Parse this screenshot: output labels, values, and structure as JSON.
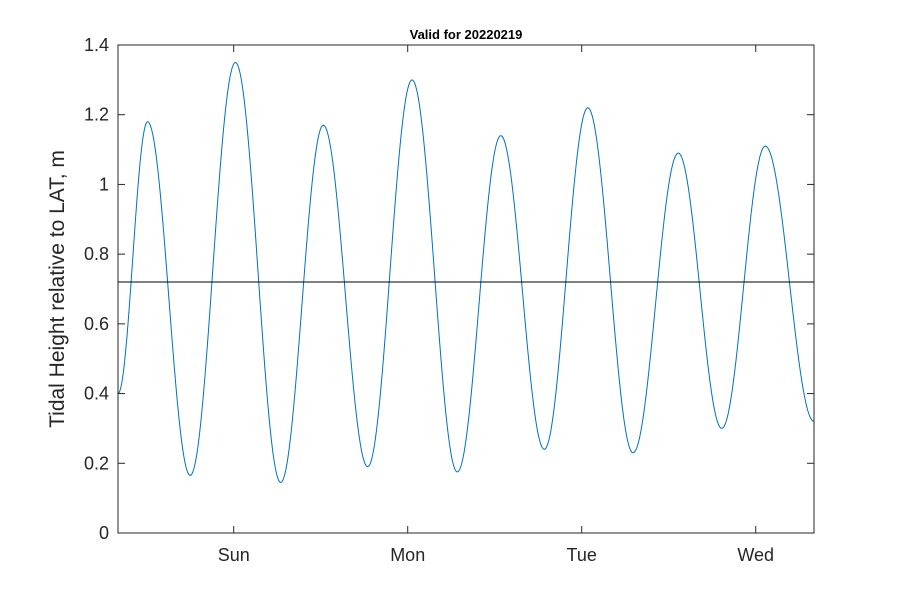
{
  "chart_data": {
    "type": "line",
    "title": "Valid for 20220219",
    "xlabel": "",
    "ylabel": "Tidal Height relative to LAT, m",
    "ylim": [
      0,
      1.4
    ],
    "yticks": [
      0,
      0.2,
      0.4,
      0.6,
      0.8,
      1,
      1.2,
      1.4
    ],
    "ytick_labels": [
      "0",
      "0.2",
      "0.4",
      "0.6",
      "0.8",
      "1",
      "1.2",
      "1.4"
    ],
    "x_unit": "days",
    "xlim": [
      0.0,
      4.0
    ],
    "xticks": [
      0.665,
      1.665,
      2.665,
      3.665
    ],
    "xtick_labels": [
      "Sun",
      "Mon",
      "Tue",
      "Wed"
    ],
    "reference_line": {
      "y": 0.72,
      "color": "#000000"
    },
    "grid": false,
    "series": [
      {
        "color": "#0072BD",
        "extrema": [
          [
            0.0,
            0.4
          ],
          [
            0.17,
            1.18
          ],
          [
            0.415,
            0.165
          ],
          [
            0.675,
            1.35
          ],
          [
            0.935,
            0.145
          ],
          [
            1.18,
            1.17
          ],
          [
            1.435,
            0.19
          ],
          [
            1.69,
            1.3
          ],
          [
            1.95,
            0.175
          ],
          [
            2.2,
            1.14
          ],
          [
            2.45,
            0.24
          ],
          [
            2.7,
            1.22
          ],
          [
            2.96,
            0.23
          ],
          [
            3.22,
            1.09
          ],
          [
            3.47,
            0.3
          ],
          [
            3.72,
            1.11
          ],
          [
            4.0,
            0.32
          ]
        ]
      }
    ]
  }
}
